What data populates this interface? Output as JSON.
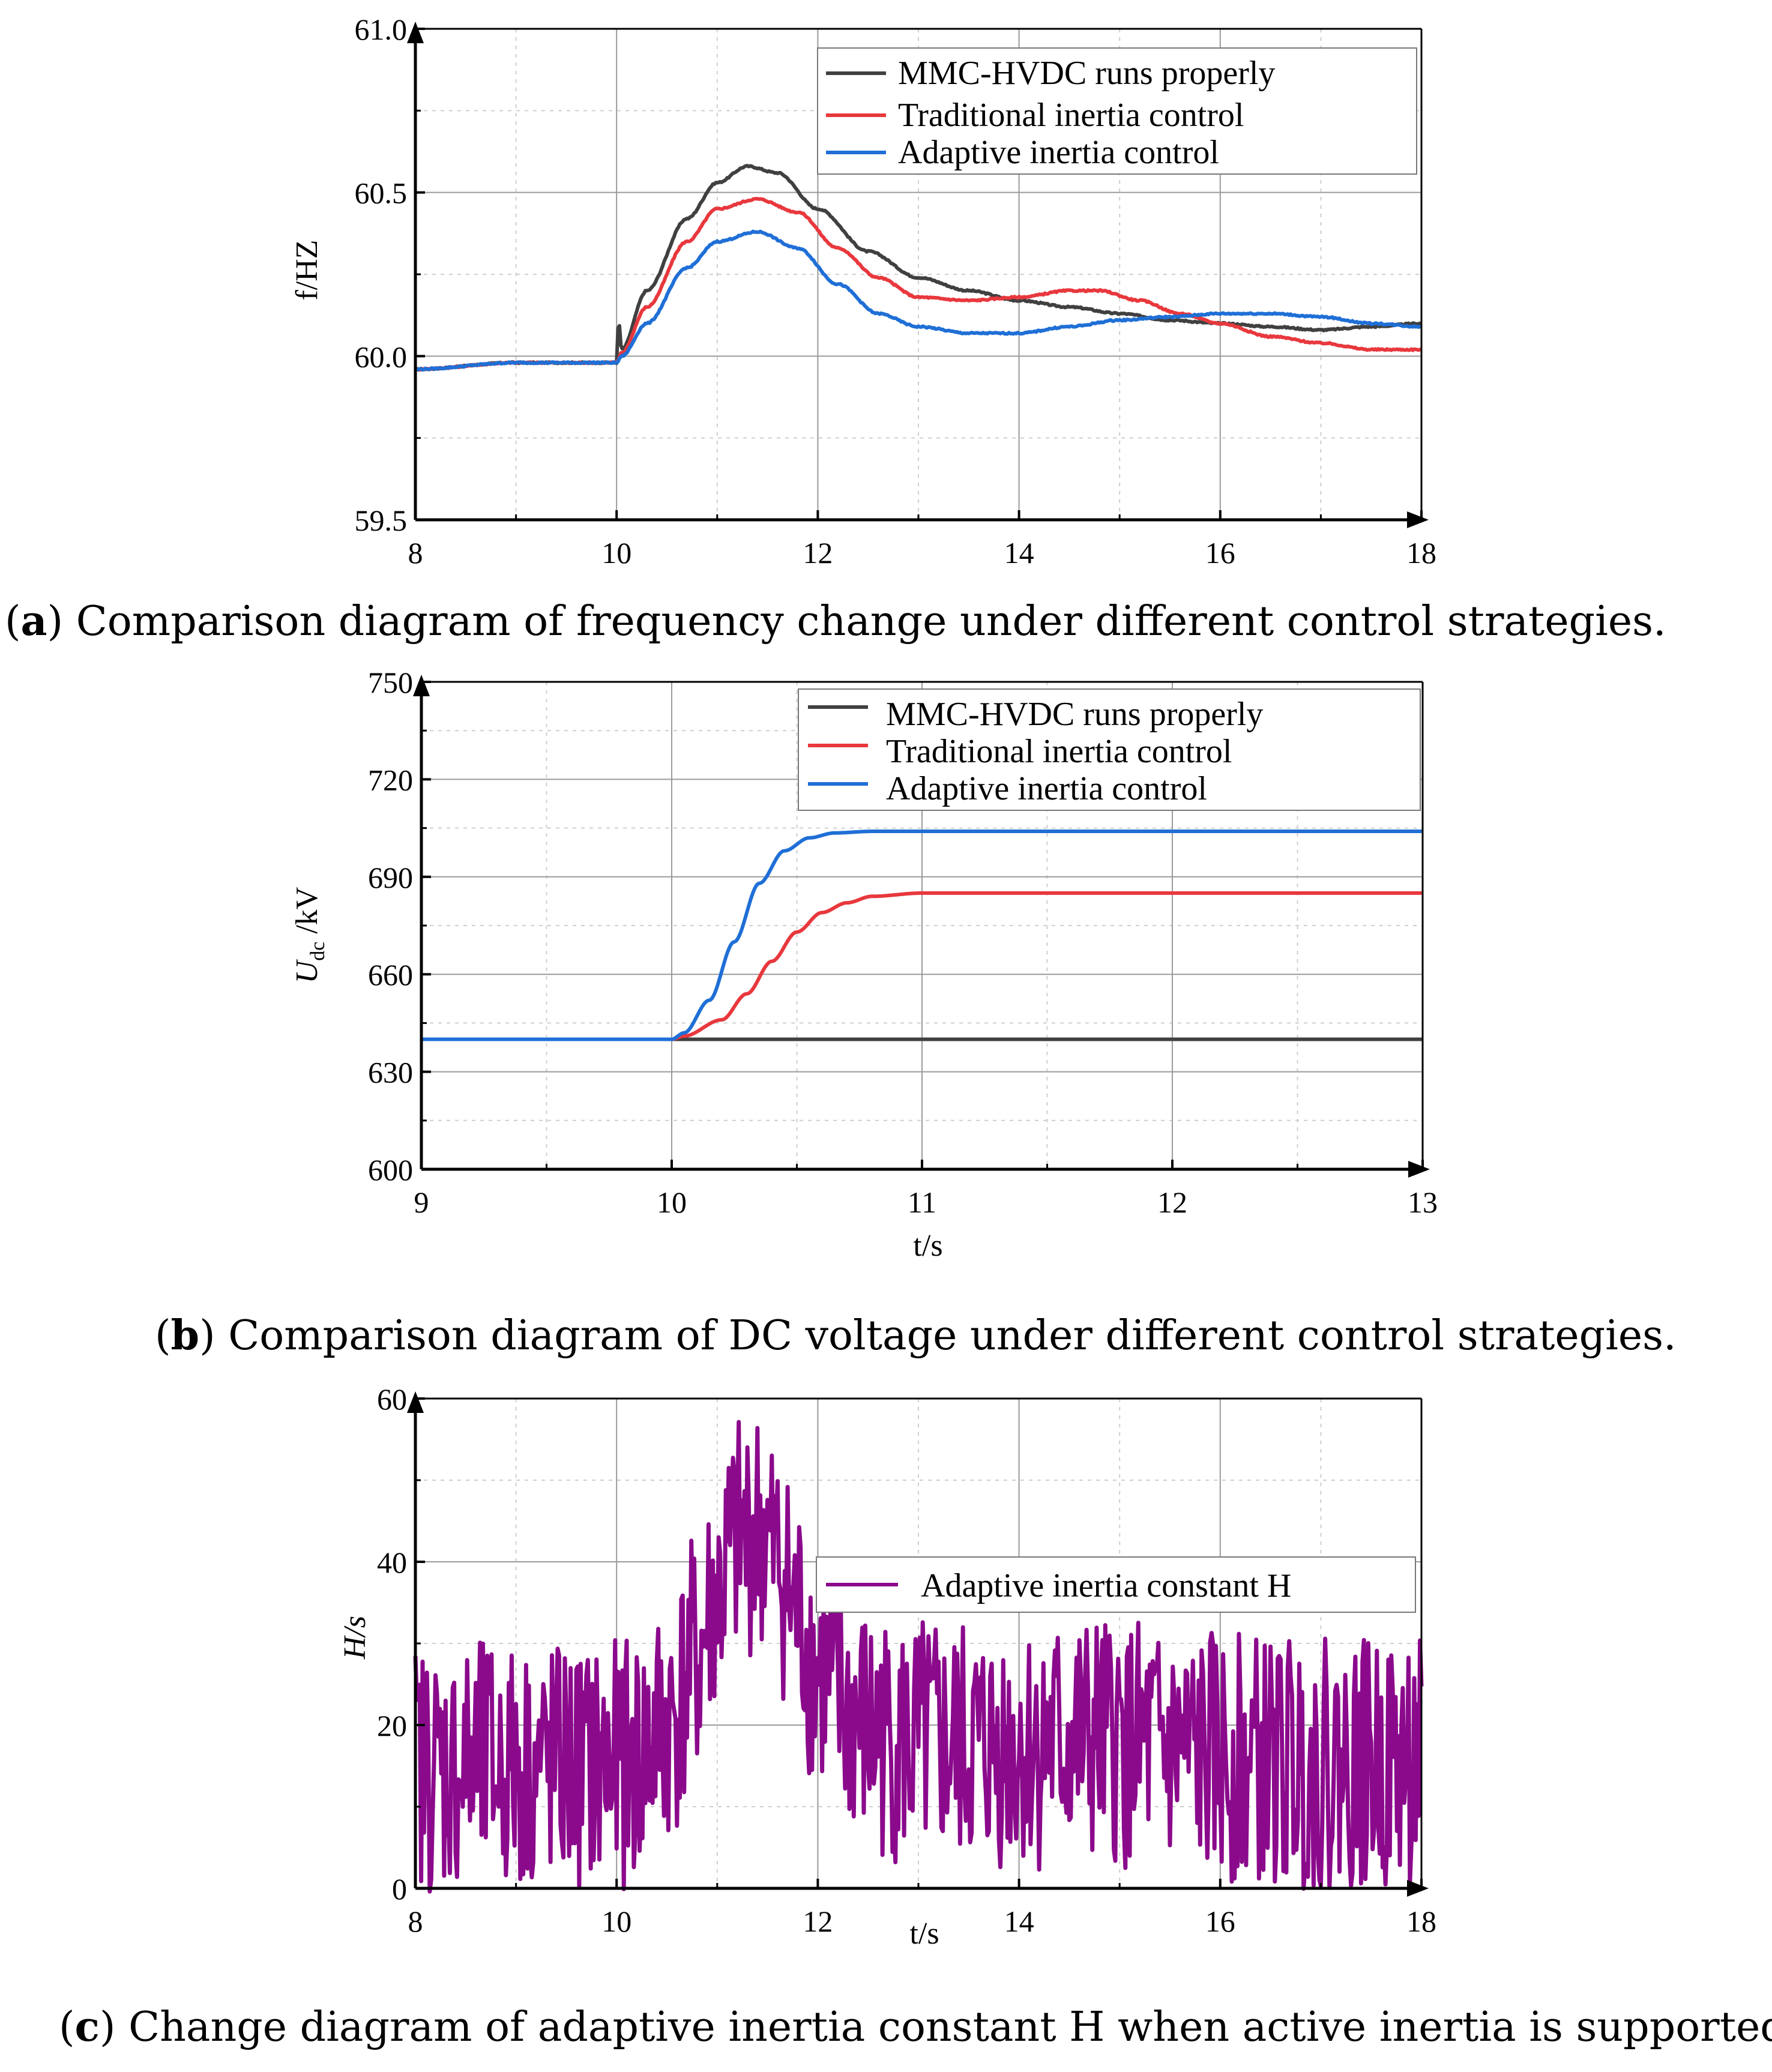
{
  "chart_data": [
    {
      "type": "line",
      "caption": {
        "letter": "a",
        "text": " Comparison diagram of frequency change under different control strategies."
      },
      "xlabel": "",
      "ylabel": "f/HZ",
      "xlim": [
        8,
        18
      ],
      "ylim": [
        59.5,
        61.0
      ],
      "xticks": [
        "8",
        "10",
        "12",
        "14",
        "16",
        "18"
      ],
      "yticks": [
        "59.5",
        "60.0",
        "60.5",
        "61.0"
      ],
      "series": [
        {
          "name": "MMC-HVDC runs properly",
          "color": "#404040",
          "x": [
            8,
            9,
            10,
            10.02,
            10.05,
            10.3,
            10.7,
            11.0,
            11.3,
            11.6,
            12.0,
            12.5,
            13.0,
            13.5,
            14.0,
            14.5,
            15.0,
            15.5,
            16.0,
            16.5,
            17.0,
            17.5,
            18.0
          ],
          "y": [
            59.96,
            59.98,
            59.98,
            60.11,
            60.02,
            60.2,
            60.42,
            60.53,
            60.58,
            60.56,
            60.45,
            60.32,
            60.24,
            60.2,
            60.17,
            60.15,
            60.13,
            60.11,
            60.1,
            60.09,
            60.08,
            60.09,
            60.1
          ]
        },
        {
          "name": "Traditional inertia control",
          "color": "#e8383d",
          "x": [
            8,
            9,
            10,
            10.05,
            10.3,
            10.7,
            11.0,
            11.4,
            11.8,
            12.2,
            12.6,
            13.0,
            13.5,
            14.0,
            14.5,
            14.8,
            15.2,
            15.6,
            16.0,
            16.5,
            17.0,
            17.5,
            18.0
          ],
          "y": [
            59.96,
            59.98,
            59.98,
            60.01,
            60.15,
            60.35,
            60.45,
            60.48,
            60.44,
            60.33,
            60.24,
            60.18,
            60.17,
            60.18,
            60.2,
            60.2,
            60.17,
            60.13,
            60.1,
            60.06,
            60.04,
            60.02,
            60.02
          ]
        },
        {
          "name": "Adaptive inertia control",
          "color": "#1f6fd6",
          "x": [
            8,
            9,
            10,
            10.05,
            10.3,
            10.7,
            11.0,
            11.4,
            11.8,
            12.2,
            12.6,
            13.0,
            13.5,
            14.0,
            14.5,
            15.0,
            15.5,
            16.0,
            16.5,
            17.0,
            17.5,
            18.0
          ],
          "y": [
            59.96,
            59.98,
            59.98,
            60.0,
            60.1,
            60.27,
            60.35,
            60.38,
            60.33,
            60.22,
            60.13,
            60.09,
            60.07,
            60.07,
            60.09,
            60.11,
            60.12,
            60.13,
            60.13,
            60.12,
            60.1,
            60.09
          ]
        }
      ]
    },
    {
      "type": "line",
      "caption": {
        "letter": "b",
        "text": " Comparison diagram of DC voltage under different control strategies."
      },
      "xlabel": "t/s",
      "ylabel": "U",
      "ylabel_sub": "dc",
      "ylabel_unit": " /kV",
      "xlim": [
        9,
        13
      ],
      "ylim": [
        600,
        750
      ],
      "xticks": [
        "9",
        "10",
        "11",
        "12",
        "13"
      ],
      "yticks": [
        "600",
        "630",
        "660",
        "690",
        "720",
        "750"
      ],
      "series": [
        {
          "name": "MMC-HVDC runs properly",
          "color": "#404040",
          "x": [
            9,
            10,
            11,
            12,
            13
          ],
          "y": [
            640,
            640,
            640,
            640,
            640
          ]
        },
        {
          "name": "Traditional inertia control",
          "color": "#e8383d",
          "x": [
            9,
            10,
            10.05,
            10.2,
            10.3,
            10.4,
            10.5,
            10.6,
            10.7,
            10.8,
            11.0,
            11.5,
            12.0,
            13.0
          ],
          "y": [
            640,
            640,
            641,
            646,
            654,
            664,
            673,
            679,
            682,
            684,
            685,
            685,
            685,
            685
          ]
        },
        {
          "name": "Adaptive inertia control",
          "color": "#1f6fd6",
          "x": [
            9,
            10,
            10.05,
            10.15,
            10.25,
            10.35,
            10.45,
            10.55,
            10.65,
            10.8,
            11.0,
            11.5,
            12.0,
            13.0
          ],
          "y": [
            640,
            640,
            642,
            652,
            670,
            688,
            698,
            702,
            703.5,
            704,
            704,
            704,
            704,
            704
          ]
        }
      ]
    },
    {
      "type": "line",
      "caption": {
        "letter": "c",
        "text": " Change diagram of adaptive inertia constant H when active inertia is supported."
      },
      "xlabel": "t/s",
      "ylabel": "H/s",
      "xlim": [
        8,
        18
      ],
      "ylim": [
        0,
        60
      ],
      "xticks": [
        "8",
        "10",
        "12",
        "14",
        "16",
        "18"
      ],
      "yticks": [
        "0",
        "20",
        "40",
        "60"
      ],
      "series": [
        {
          "name": "Adaptive inertia constant H",
          "color": "#8b0a8c",
          "x": [
            8,
            9,
            10,
            10.2,
            10.5,
            10.8,
            11.0,
            11.2,
            11.4,
            11.6,
            11.8,
            12.0,
            12.3,
            12.6,
            13.0,
            13.5,
            14.0,
            14.5,
            14.8,
            15.2,
            15.6,
            16.0,
            16.5,
            17.0,
            17.5,
            18.0
          ],
          "y": [
            14.8,
            14.9,
            15.0,
            16.0,
            20.0,
            28.0,
            36.0,
            42.0,
            44.0,
            40.0,
            33.0,
            26.5,
            21.0,
            18.5,
            17.5,
            17.2,
            17.5,
            17.8,
            17.8,
            17.2,
            16.5,
            16.0,
            15.5,
            15.3,
            15.2,
            15.2
          ]
        }
      ]
    }
  ]
}
